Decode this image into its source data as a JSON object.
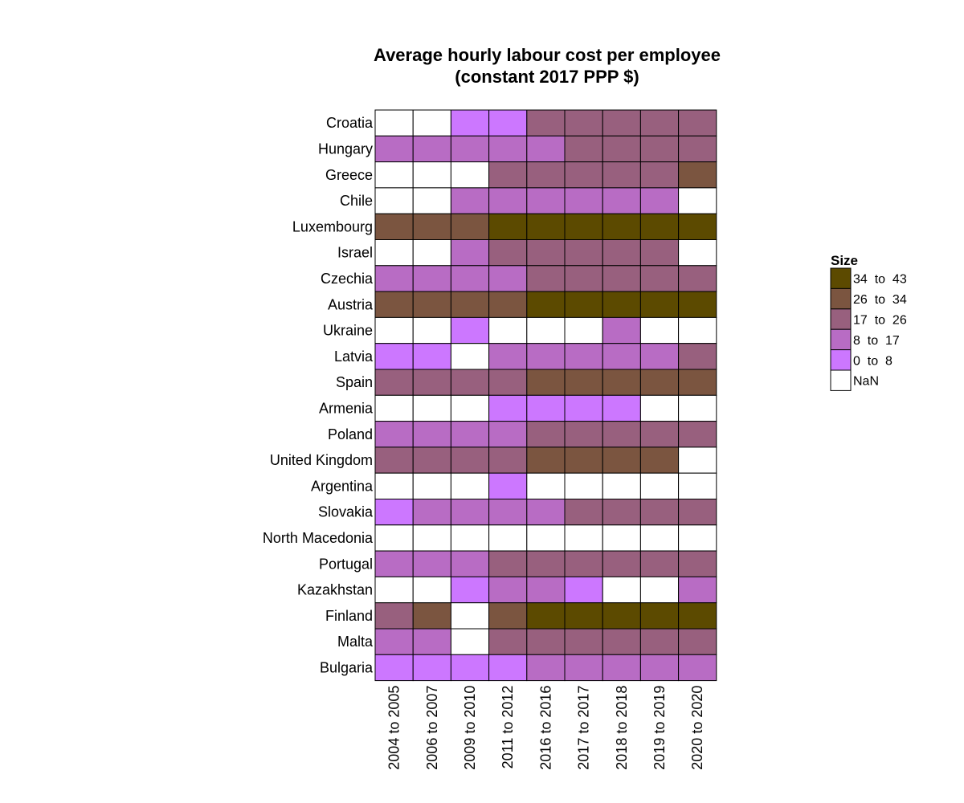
{
  "chart_data": {
    "type": "heatmap",
    "title": [
      "Average hourly labour cost per employee",
      "(constant 2017 PPP $)"
    ],
    "xlabel": "",
    "ylabel": "",
    "columns": [
      "2004 to 2005",
      "2006 to 2007",
      "2009 to 2010",
      "2011 to 2012",
      "2016 to 2016",
      "2017 to 2017",
      "2018 to 2018",
      "2019 to 2019",
      "2020 to 2020"
    ],
    "rows": [
      "Croatia",
      "Hungary",
      "Greece",
      "Chile",
      "Luxembourg",
      "Israel",
      "Czechia",
      "Austria",
      "Ukraine",
      "Latvia",
      "Spain",
      "Armenia",
      "Poland",
      "United Kingdom",
      "Argentina",
      "Slovakia",
      "North Macedonia",
      "Portugal",
      "Kazakhstan",
      "Finland",
      "Malta",
      "Bulgaria"
    ],
    "legend": {
      "title": "Size",
      "position": "right",
      "bins": [
        {
          "label": "34  to  43",
          "color": "#5c4a00"
        },
        {
          "label": "26  to  34",
          "color": "#7b5540"
        },
        {
          "label": "17  to  26",
          "color": "#98607e"
        },
        {
          "label": "8  to  17",
          "color": "#b86cc4"
        },
        {
          "label": "0  to  8",
          "color": "#cc77ff"
        },
        {
          "label": "NaN",
          "color": "#ffffff"
        }
      ]
    },
    "bin_index_note_values": "cells give legend bin index (0=34-43, 1=26-34, 2=17-26, 3=8-17, 4=0-8, 5=NaN)",
    "cells": [
      [
        5,
        5,
        4,
        4,
        2,
        2,
        2,
        2,
        2
      ],
      [
        3,
        3,
        3,
        3,
        3,
        2,
        2,
        2,
        2
      ],
      [
        5,
        5,
        5,
        2,
        2,
        2,
        2,
        2,
        1
      ],
      [
        5,
        5,
        3,
        3,
        3,
        3,
        3,
        3,
        5
      ],
      [
        1,
        1,
        1,
        0,
        0,
        0,
        0,
        0,
        0
      ],
      [
        5,
        5,
        3,
        2,
        2,
        2,
        2,
        2,
        5
      ],
      [
        3,
        3,
        3,
        3,
        2,
        2,
        2,
        2,
        2
      ],
      [
        1,
        1,
        1,
        1,
        0,
        0,
        0,
        0,
        0
      ],
      [
        5,
        5,
        4,
        5,
        5,
        5,
        3,
        5,
        5
      ],
      [
        4,
        4,
        5,
        3,
        3,
        3,
        3,
        3,
        2
      ],
      [
        2,
        2,
        2,
        2,
        1,
        1,
        1,
        1,
        1
      ],
      [
        5,
        5,
        5,
        4,
        4,
        4,
        4,
        5,
        5
      ],
      [
        3,
        3,
        3,
        3,
        2,
        2,
        2,
        2,
        2
      ],
      [
        2,
        2,
        2,
        2,
        1,
        1,
        1,
        1,
        5
      ],
      [
        5,
        5,
        5,
        4,
        5,
        5,
        5,
        5,
        5
      ],
      [
        4,
        3,
        3,
        3,
        3,
        2,
        2,
        2,
        2
      ],
      [
        5,
        5,
        5,
        5,
        5,
        5,
        5,
        5,
        5
      ],
      [
        3,
        3,
        3,
        2,
        2,
        2,
        2,
        2,
        2
      ],
      [
        5,
        5,
        4,
        3,
        3,
        4,
        5,
        5,
        3
      ],
      [
        2,
        1,
        5,
        1,
        0,
        0,
        0,
        0,
        0
      ],
      [
        3,
        3,
        5,
        2,
        2,
        2,
        2,
        2,
        2
      ],
      [
        4,
        4,
        4,
        4,
        3,
        3,
        3,
        3,
        3
      ]
    ]
  }
}
